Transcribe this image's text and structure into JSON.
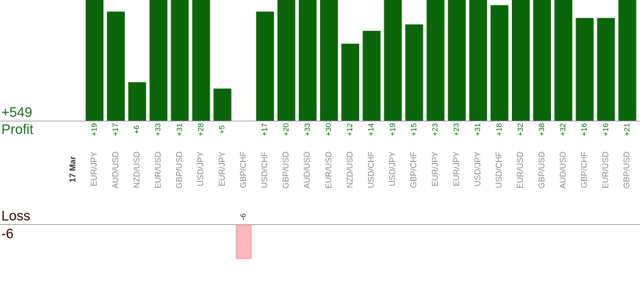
{
  "chart_data": {
    "type": "bar",
    "profit_total": "+549",
    "profit_label": "Profit",
    "loss_label": "Loss",
    "loss_total": "-6",
    "date": "17 Mar",
    "categories": [
      "EUR/JPY",
      "AUD/USD",
      "NZD/USD",
      "EUR/USD",
      "GBP/USD",
      "USD/JPY",
      "EUR/JPY",
      "GBP/CHF",
      "USD/CHF",
      "GBP/USD",
      "AUD/USD",
      "EUR/USD",
      "NZD/USD",
      "USD/CHF",
      "USD/JPY",
      "GBP/CHF",
      "EUR/JPY",
      "EUR/JPY",
      "USD/JPY",
      "USD/CHF",
      "EUR/USD",
      "GBP/USD",
      "AUD/USD",
      "GBP/CHF",
      "EUR/USD",
      "GBP/USD"
    ],
    "values": [
      19,
      17,
      6,
      33,
      31,
      28,
      5,
      -6,
      17,
      20,
      33,
      30,
      12,
      14,
      19,
      15,
      23,
      23,
      31,
      18,
      32,
      38,
      32,
      16,
      16,
      21
    ],
    "value_labels": [
      "+19",
      "+17",
      "+6",
      "+33",
      "+31",
      "+28",
      "+5",
      "-6",
      "+17",
      "+20",
      "+33",
      "+30",
      "+12",
      "+14",
      "+19",
      "+15",
      "+23",
      "+23",
      "+31",
      "+18",
      "+32",
      "+38",
      "+32",
      "+16",
      "+16",
      "+21"
    ],
    "color": "#0b660b",
    "loss_color": "#ffb6c1",
    "ylim": [
      0,
      18.8
    ],
    "loss_ylim": [
      -6,
      0
    ]
  }
}
